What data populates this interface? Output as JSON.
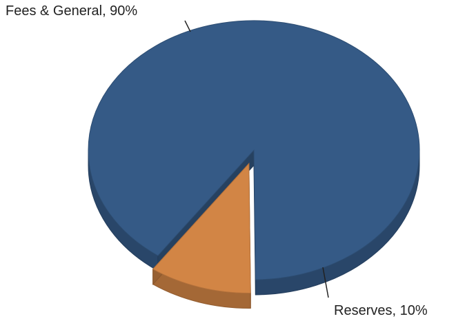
{
  "chart_data": {
    "type": "pie",
    "style": "3d-exploded",
    "slices": [
      {
        "name": "Fees & General",
        "value": 90,
        "label": "Fees & General, 90%",
        "color": "#355a86"
      },
      {
        "name": "Reserves",
        "value": 10,
        "label": "Reserves, 10%",
        "color": "#d28545"
      }
    ],
    "data_labels": "outside-with-leader-lines"
  }
}
